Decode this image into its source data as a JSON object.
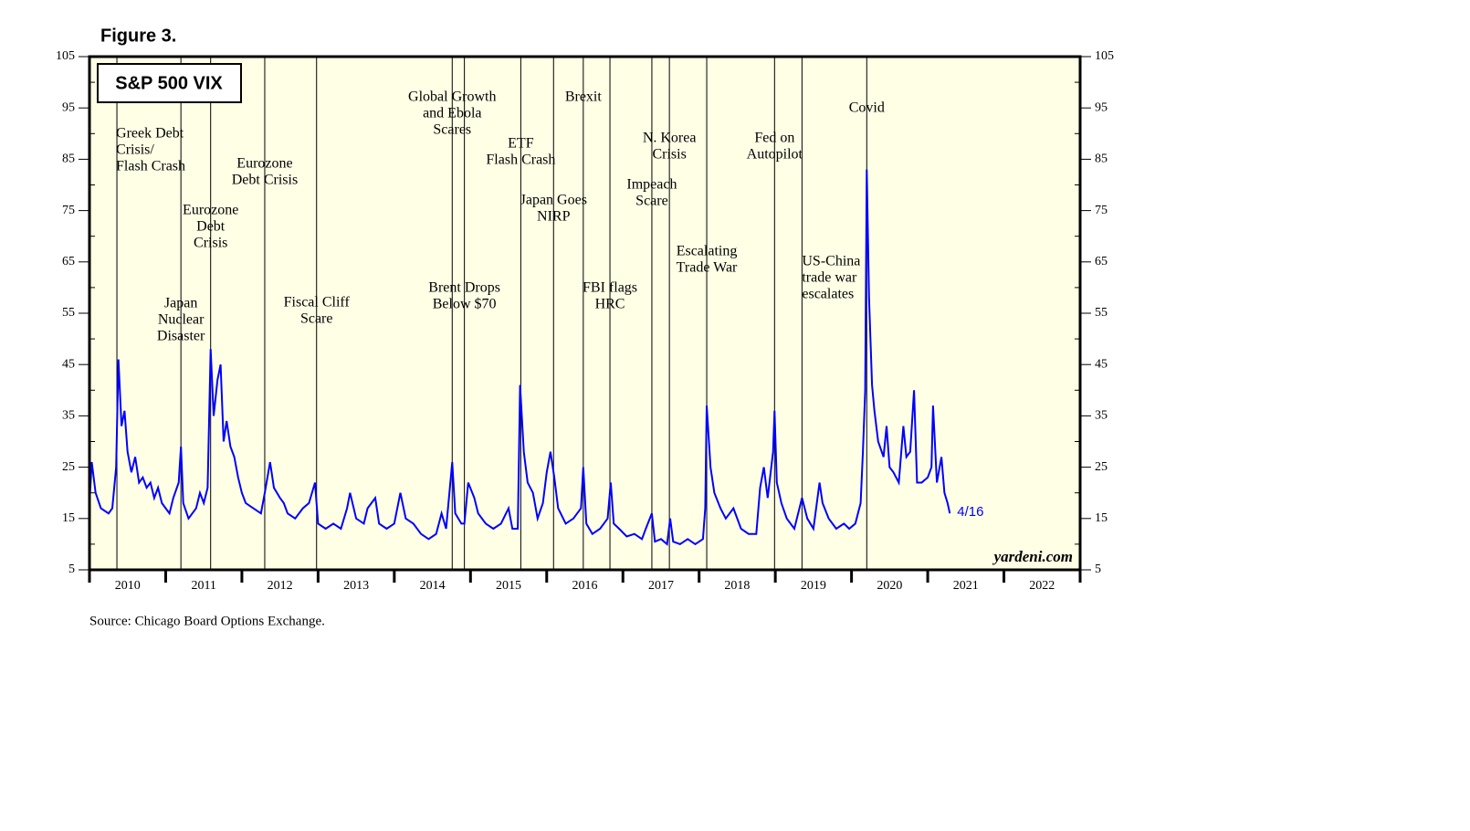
{
  "chart_data": {
    "type": "line",
    "figure_label": "Figure 3.",
    "title": "S&P 500 VIX",
    "source": "Source: Chicago Board Options Exchange.",
    "watermark": "yardeni.com",
    "end_label": "4/16",
    "color": "#0000ff",
    "background": "#ffffe6",
    "xlim": [
      2010,
      2023
    ],
    "xticks": [
      2010,
      2011,
      2012,
      2013,
      2014,
      2015,
      2016,
      2017,
      2018,
      2019,
      2020,
      2021,
      2022
    ],
    "ylim": [
      5,
      105
    ],
    "yticks": [
      5,
      15,
      25,
      35,
      45,
      55,
      65,
      75,
      85,
      95,
      105
    ],
    "y2lim": [
      5,
      105
    ],
    "y2ticks": [
      5,
      15,
      25,
      35,
      45,
      55,
      65,
      75,
      85,
      95,
      105
    ],
    "x": [
      2010.0,
      2010.03,
      2010.08,
      2010.15,
      2010.25,
      2010.3,
      2010.35,
      2010.38,
      2010.42,
      2010.46,
      2010.5,
      2010.55,
      2010.6,
      2010.65,
      2010.7,
      2010.75,
      2010.8,
      2010.85,
      2010.9,
      2010.95,
      2011.0,
      2011.05,
      2011.1,
      2011.17,
      2011.2,
      2011.23,
      2011.3,
      2011.4,
      2011.45,
      2011.5,
      2011.55,
      2011.59,
      2011.63,
      2011.68,
      2011.72,
      2011.76,
      2011.8,
      2011.85,
      2011.9,
      2011.95,
      2012.0,
      2012.05,
      2012.15,
      2012.25,
      2012.3,
      2012.37,
      2012.42,
      2012.5,
      2012.55,
      2012.6,
      2012.7,
      2012.8,
      2012.88,
      2012.96,
      2013.0,
      2013.1,
      2013.2,
      2013.3,
      2013.38,
      2013.42,
      2013.5,
      2013.6,
      2013.65,
      2013.75,
      2013.8,
      2013.9,
      2014.0,
      2014.08,
      2014.15,
      2014.25,
      2014.35,
      2014.45,
      2014.55,
      2014.62,
      2014.68,
      2014.76,
      2014.8,
      2014.88,
      2014.92,
      2014.97,
      2015.05,
      2015.1,
      2015.2,
      2015.3,
      2015.4,
      2015.5,
      2015.55,
      2015.62,
      2015.65,
      2015.7,
      2015.75,
      2015.82,
      2015.88,
      2015.95,
      2016.0,
      2016.05,
      2016.1,
      2016.15,
      2016.25,
      2016.35,
      2016.45,
      2016.48,
      2016.52,
      2016.6,
      2016.7,
      2016.8,
      2016.84,
      2016.88,
      2016.95,
      2017.05,
      2017.15,
      2017.25,
      2017.3,
      2017.38,
      2017.42,
      2017.5,
      2017.58,
      2017.62,
      2017.66,
      2017.75,
      2017.85,
      2017.95,
      2018.05,
      2018.08,
      2018.1,
      2018.15,
      2018.2,
      2018.28,
      2018.35,
      2018.45,
      2018.55,
      2018.65,
      2018.75,
      2018.8,
      2018.85,
      2018.9,
      2018.97,
      2018.99,
      2019.02,
      2019.08,
      2019.15,
      2019.25,
      2019.35,
      2019.42,
      2019.5,
      2019.58,
      2019.62,
      2019.7,
      2019.8,
      2019.9,
      2019.97,
      2020.05,
      2020.12,
      2020.15,
      2020.18,
      2020.2,
      2020.23,
      2020.27,
      2020.3,
      2020.35,
      2020.42,
      2020.46,
      2020.5,
      2020.55,
      2020.62,
      2020.68,
      2020.72,
      2020.77,
      2020.82,
      2020.86,
      2020.92,
      2021.0,
      2021.05,
      2021.07,
      2021.12,
      2021.18,
      2021.22,
      2021.26,
      2021.29
    ],
    "values": [
      18,
      26,
      20,
      17,
      16,
      17,
      25,
      46,
      33,
      36,
      28,
      24,
      27,
      22,
      23,
      21,
      22,
      19,
      21,
      18,
      17,
      16,
      19,
      22,
      29,
      18,
      15,
      17,
      20,
      18,
      21,
      48,
      35,
      42,
      45,
      30,
      34,
      29,
      27,
      23,
      20,
      18,
      17,
      16,
      20,
      26,
      21,
      19,
      18,
      16,
      15,
      17,
      18,
      22,
      14,
      13,
      14,
      13,
      17,
      20,
      15,
      14,
      17,
      19,
      14,
      13,
      14,
      20,
      15,
      14,
      12,
      11,
      12,
      16,
      13,
      26,
      16,
      14,
      14,
      22,
      19,
      16,
      14,
      13,
      14,
      17,
      13,
      13,
      41,
      28,
      22,
      20,
      15,
      18,
      24,
      28,
      23,
      17,
      14,
      15,
      17,
      25,
      14,
      12,
      13,
      15,
      22,
      14,
      13,
      11.5,
      12,
      11,
      13,
      16,
      10.5,
      11,
      10,
      15,
      10.5,
      10,
      11,
      10,
      11,
      17,
      37,
      25,
      20,
      17,
      15,
      17,
      13,
      12,
      12,
      21,
      25,
      19,
      28,
      36,
      22,
      18,
      15,
      13,
      19,
      15,
      13,
      22,
      18,
      15,
      13,
      14,
      13,
      14,
      18,
      28,
      40,
      83,
      58,
      41,
      36,
      30,
      27,
      33,
      25,
      24,
      22,
      33,
      27,
      28,
      40,
      22,
      22,
      23,
      25,
      37,
      22,
      27,
      20,
      18,
      16
    ],
    "annotations": [
      {
        "x": 2010.36,
        "lines": [
          "Greek Debt",
          "Crisis/",
          "Flash Crash"
        ]
      },
      {
        "x": 2011.2,
        "lines": [
          "Japan",
          "Nuclear",
          "Disaster"
        ]
      },
      {
        "x": 2011.59,
        "lines": [
          "Eurozone",
          "Debt",
          "Crisis"
        ]
      },
      {
        "x": 2012.3,
        "lines": [
          "Eurozone",
          "Debt Crisis"
        ]
      },
      {
        "x": 2012.98,
        "lines": [
          "Fiscal Cliff",
          "Scare"
        ]
      },
      {
        "x": 2014.76,
        "lines": [
          "Global Growth",
          "and Ebola",
          "Scares"
        ]
      },
      {
        "x": 2014.92,
        "lines": [
          "Brent Drops",
          "Below $70"
        ]
      },
      {
        "x": 2015.66,
        "lines": [
          "ETF",
          "Flash Crash"
        ]
      },
      {
        "x": 2016.09,
        "lines": [
          "Japan Goes",
          "NIRP"
        ]
      },
      {
        "x": 2016.48,
        "lines": [
          "Brexit"
        ]
      },
      {
        "x": 2016.83,
        "lines": [
          "FBI flags",
          "HRC"
        ]
      },
      {
        "x": 2017.38,
        "lines": [
          "Impeach",
          "Scare"
        ]
      },
      {
        "x": 2017.61,
        "lines": [
          "N. Korea",
          "Crisis"
        ]
      },
      {
        "x": 2018.1,
        "lines": [
          "Escalating",
          "Trade War"
        ]
      },
      {
        "x": 2018.99,
        "lines": [
          "Fed on",
          "Autopilot"
        ]
      },
      {
        "x": 2019.35,
        "lines": [
          "US-China",
          "trade war",
          "escalates"
        ]
      },
      {
        "x": 2020.2,
        "lines": [
          "Covid"
        ]
      }
    ]
  }
}
